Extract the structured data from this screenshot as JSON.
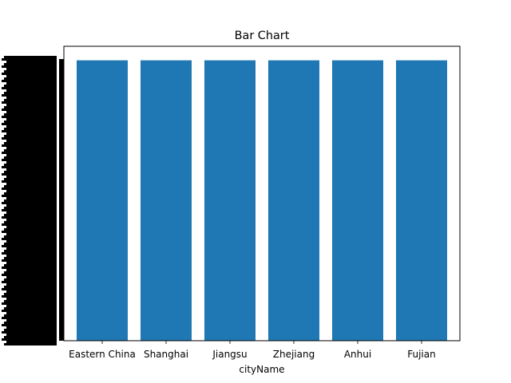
{
  "chart_data": {
    "type": "bar",
    "title": "Bar Chart",
    "xlabel": "cityName",
    "ylabel": "",
    "categories": [
      "Eastern China",
      "Shanghai",
      "Jiangsu",
      "Zhejiang",
      "Anhui",
      "Fujian"
    ],
    "values": [
      1,
      1,
      1,
      1,
      1,
      1
    ],
    "ylim": [
      0,
      1.05
    ],
    "bar_color": "#1f77b4",
    "y_tick_labels_note": "dense overlapping labels rendered illegible (solid black)",
    "grid": false,
    "legend": "none"
  }
}
